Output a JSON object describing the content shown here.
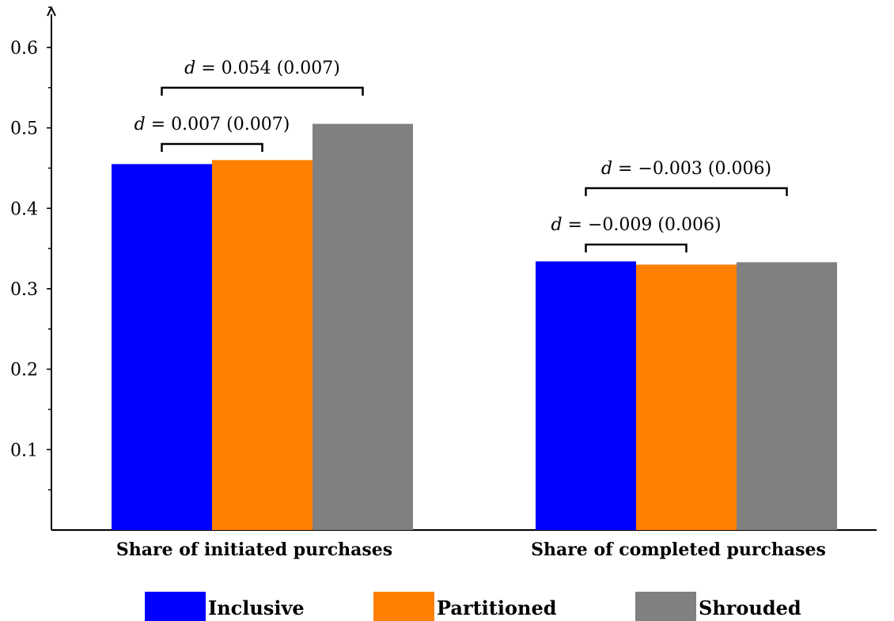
{
  "chart_data": {
    "type": "bar",
    "categories": [
      "Share of initiated purchases",
      "Share of completed purchases"
    ],
    "series": [
      {
        "name": "Inclusive",
        "color": "#0000ff",
        "values": [
          0.455,
          0.334
        ]
      },
      {
        "name": "Partitioned",
        "color": "#ff8000",
        "values": [
          0.46,
          0.33
        ]
      },
      {
        "name": "Shrouded",
        "color": "#808080",
        "values": [
          0.505,
          0.333
        ]
      }
    ],
    "ylim": [
      0,
      0.65
    ],
    "yticks": [
      0.1,
      0.2,
      0.3,
      0.4,
      0.5,
      0.6
    ],
    "ytick_labels": [
      "0.1",
      "0.2",
      "0.3",
      "0.4",
      "0.5",
      "0.6"
    ],
    "yminor_step": 0.05,
    "legend": {
      "position": "bottom",
      "entries": [
        "Inclusive",
        "Partitioned",
        "Shrouded"
      ]
    },
    "annotations": [
      {
        "category": 0,
        "from_series": 0,
        "to_series": 1,
        "level": 0.48,
        "var": "d",
        "text": " = 0.007 (0.007)"
      },
      {
        "category": 0,
        "from_series": 0,
        "to_series": 2,
        "level": 0.55,
        "var": "d",
        "text": " = 0.054 (0.007)"
      },
      {
        "category": 1,
        "from_series": 0,
        "to_series": 1,
        "level": 0.355,
        "var": "d",
        "text": " = −0.009 (0.006)"
      },
      {
        "category": 1,
        "from_series": 0,
        "to_series": 2,
        "level": 0.425,
        "var": "d",
        "text": " = −0.003 (0.006)"
      }
    ]
  }
}
